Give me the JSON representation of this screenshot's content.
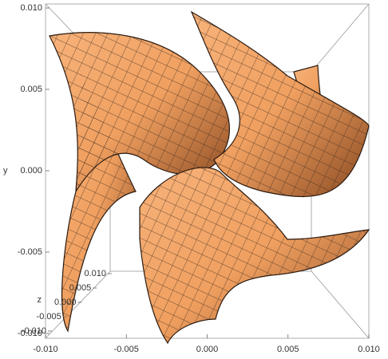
{
  "chart_data": {
    "type": "surface3d",
    "y_label": "y",
    "z_label": "z",
    "xlim": [
      -0.01,
      0.01
    ],
    "xticks": [
      {
        "value": -0.01,
        "label": "-0.010"
      },
      {
        "value": -0.005,
        "label": "-0.005"
      },
      {
        "value": 0,
        "label": "0.000"
      },
      {
        "value": 0.005,
        "label": "0.005"
      },
      {
        "value": 0.01,
        "label": "0.010"
      }
    ],
    "ylim": [
      -0.01,
      0.01
    ],
    "yticks": [
      {
        "value": -0.01,
        "label": "-0.010"
      },
      {
        "value": -0.005,
        "label": "-0.005"
      },
      {
        "value": 0,
        "label": "0.000"
      },
      {
        "value": 0.005,
        "label": "0.005"
      },
      {
        "value": 0.01,
        "label": "0.010"
      }
    ],
    "zlim": [
      -0.01,
      0.01
    ],
    "zticks": [
      {
        "value": -0.01,
        "label": "-0.010"
      },
      {
        "value": -0.005,
        "label": "-0.005"
      },
      {
        "value": 0,
        "label": "0.000"
      },
      {
        "value": 0.005,
        "label": "0.005"
      },
      {
        "value": 0.01,
        "label": "0.010"
      }
    ],
    "color": "#f0a060"
  }
}
